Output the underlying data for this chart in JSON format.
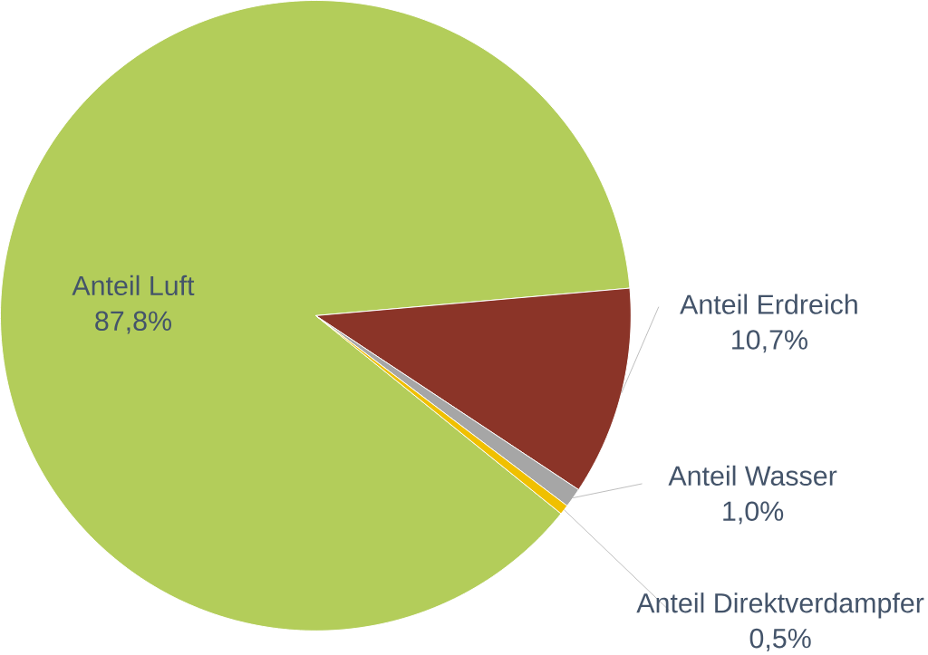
{
  "chart_data": {
    "type": "pie",
    "categories": [
      "Anteil Luft",
      "Anteil Erdreich",
      "Anteil Wasser",
      "Anteil Direktverdampfer"
    ],
    "values": [
      87.8,
      10.7,
      1.0,
      0.5
    ],
    "value_labels": [
      "87,8%",
      "10,7%",
      "1,0%",
      "0,5%"
    ],
    "colors": [
      "#b3cd5a",
      "#8b3428",
      "#a6a6a6",
      "#f0c000"
    ]
  }
}
